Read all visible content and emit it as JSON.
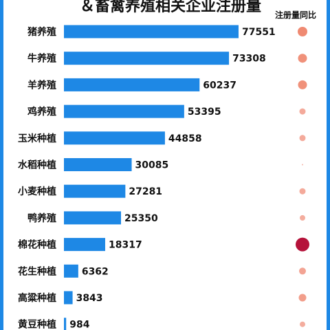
{
  "chart_data": {
    "type": "bar",
    "orientation": "horizontal",
    "title": "＆畜禽养殖相关企业注册量",
    "legend_title": "注册量同比",
    "categories": [
      "猪养殖",
      "牛养殖",
      "羊养殖",
      "鸡养殖",
      "玉米种植",
      "水稻种植",
      "小麦种植",
      "鸭养殖",
      "棉花种植",
      "花生种植",
      "高粱种植",
      "黄豆种植"
    ],
    "values": [
      77551,
      73308,
      60237,
      53395,
      44858,
      30085,
      27281,
      25350,
      18317,
      6362,
      3843,
      984
    ],
    "value_labels": [
      "77551",
      "73308",
      "60237",
      "53395",
      "44858",
      "30085",
      "27281",
      "25350",
      "18317",
      "6362",
      "3843",
      "984"
    ],
    "yoy_levels": [
      0.55,
      0.5,
      0.5,
      0.3,
      0.3,
      0.05,
      0.3,
      0.25,
      1.0,
      0.35,
      0.4,
      0.25
    ],
    "xlim": [
      0,
      80000
    ],
    "grid": false,
    "legend_position": "top-right",
    "colors": {
      "bar": "#1e88e5",
      "frame": "#1e88e5",
      "bubble_low": "#f6b8ad",
      "bubble_mid": "#ef8a72",
      "bubble_high": "#b5123a"
    }
  }
}
